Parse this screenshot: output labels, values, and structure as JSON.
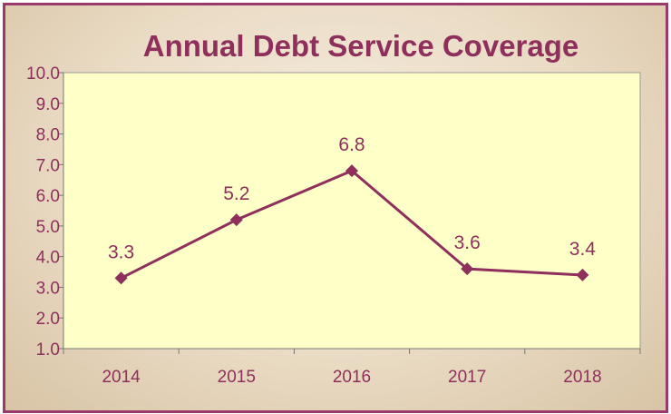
{
  "chart_data": {
    "type": "line",
    "title": "Annual Debt Service Coverage",
    "categories": [
      "2014",
      "2015",
      "2016",
      "2017",
      "2018"
    ],
    "series": [
      {
        "values": [
          3.3,
          5.2,
          6.8,
          3.6,
          3.4
        ]
      }
    ],
    "data_labels": [
      "3.3",
      "5.2",
      "6.8",
      "3.6",
      "3.4"
    ],
    "y_ticks": [
      "1.0",
      "2.0",
      "3.0",
      "4.0",
      "5.0",
      "6.0",
      "7.0",
      "8.0",
      "9.0",
      "10.0"
    ],
    "ylim": [
      1.0,
      10.0
    ],
    "grid": false,
    "colors": {
      "line": "#8e2f5c",
      "plot_background": "#ffffc8",
      "frame_border": "#9b3a6a",
      "text": "#8e2f5c"
    }
  }
}
